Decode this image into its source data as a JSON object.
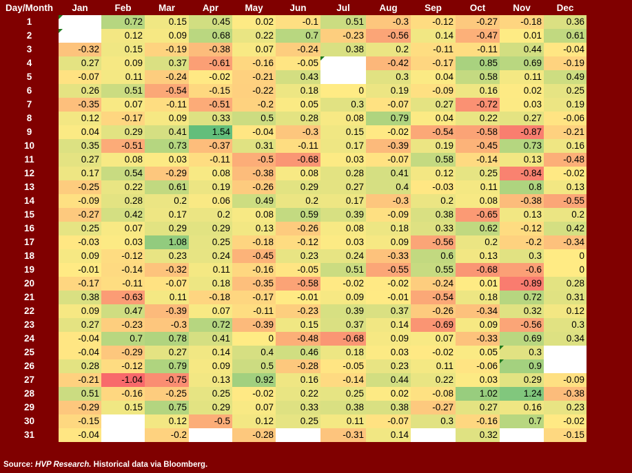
{
  "table": {
    "corner_label": "Day/Month",
    "months": [
      "Jan",
      "Feb",
      "Mar",
      "Apr",
      "May",
      "Jun",
      "Jul",
      "Aug",
      "Sep",
      "Oct",
      "Nov",
      "Dec"
    ],
    "days": [
      "1",
      "2",
      "3",
      "4",
      "5",
      "6",
      "7",
      "8",
      "9",
      "10",
      "11",
      "12",
      "13",
      "14",
      "15",
      "16",
      "17",
      "18",
      "19",
      "20",
      "21",
      "22",
      "23",
      "24",
      "25",
      "26",
      "27",
      "28",
      "29",
      "30",
      "31"
    ],
    "values": [
      [
        null,
        "0.72",
        "0.15",
        "0.45",
        "0.02",
        "-0.1",
        "0.51",
        "-0.3",
        "-0.12",
        "-0.27",
        "-0.18",
        "0.36"
      ],
      [
        null,
        "0.12",
        "0.09",
        "0.68",
        "0.22",
        "0.7",
        "-0.23",
        "-0.56",
        "0.14",
        "-0.47",
        "0.01",
        "0.61"
      ],
      [
        "-0.32",
        "0.15",
        "-0.19",
        "-0.38",
        "0.07",
        "-0.24",
        "0.38",
        "0.2",
        "-0.11",
        "-0.11",
        "0.44",
        "-0.04"
      ],
      [
        "0.27",
        "0.09",
        "0.37",
        "-0.61",
        "-0.16",
        "-0.05",
        null,
        "-0.42",
        "-0.17",
        "0.85",
        "0.69",
        "-0.19"
      ],
      [
        "-0.07",
        "0.11",
        "-0.24",
        "-0.02",
        "-0.21",
        "0.43",
        null,
        "0.3",
        "0.04",
        "0.58",
        "0.11",
        "0.49"
      ],
      [
        "0.26",
        "0.51",
        "-0.54",
        "-0.15",
        "-0.22",
        "0.18",
        "0",
        "0.19",
        "-0.09",
        "0.16",
        "0.02",
        "0.25"
      ],
      [
        "-0.35",
        "0.07",
        "-0.11",
        "-0.51",
        "-0.2",
        "0.05",
        "0.3",
        "-0.07",
        "0.27",
        "-0.72",
        "0.03",
        "0.19"
      ],
      [
        "0.12",
        "-0.17",
        "0.09",
        "0.33",
        "0.5",
        "0.28",
        "0.08",
        "0.79",
        "0.04",
        "0.22",
        "0.27",
        "-0.06"
      ],
      [
        "0.04",
        "0.29",
        "0.41",
        "1.54",
        "-0.04",
        "-0.3",
        "0.15",
        "-0.02",
        "-0.54",
        "-0.58",
        "-0.87",
        "-0.21"
      ],
      [
        "0.35",
        "-0.51",
        "0.73",
        "-0.37",
        "0.31",
        "-0.11",
        "0.17",
        "-0.39",
        "0.19",
        "-0.45",
        "0.73",
        "0.16"
      ],
      [
        "0.27",
        "0.08",
        "0.03",
        "-0.11",
        "-0.5",
        "-0.68",
        "0.03",
        "-0.07",
        "0.58",
        "-0.14",
        "0.13",
        "-0.48"
      ],
      [
        "0.17",
        "0.54",
        "-0.29",
        "0.08",
        "-0.38",
        "0.08",
        "0.28",
        "0.41",
        "0.12",
        "0.25",
        "-0.84",
        "-0.02"
      ],
      [
        "-0.25",
        "0.22",
        "0.61",
        "0.19",
        "-0.26",
        "0.29",
        "0.27",
        "0.4",
        "-0.03",
        "0.11",
        "0.8",
        "0.13"
      ],
      [
        "-0.09",
        "0.28",
        "0.2",
        "0.06",
        "0.49",
        "0.2",
        "0.17",
        "-0.3",
        "0.2",
        "0.08",
        "-0.38",
        "-0.55"
      ],
      [
        "-0.27",
        "0.42",
        "0.17",
        "0.2",
        "0.08",
        "0.59",
        "0.39",
        "-0.09",
        "0.38",
        "-0.65",
        "0.13",
        "0.2"
      ],
      [
        "0.25",
        "0.07",
        "0.29",
        "0.29",
        "0.13",
        "-0.26",
        "0.08",
        "0.18",
        "0.33",
        "0.62",
        "-0.12",
        "0.42"
      ],
      [
        "-0.03",
        "0.03",
        "1.08",
        "0.25",
        "-0.18",
        "-0.12",
        "0.03",
        "0.09",
        "-0.56",
        "0.2",
        "-0.2",
        "-0.34"
      ],
      [
        "0.09",
        "-0.12",
        "0.23",
        "0.24",
        "-0.45",
        "0.23",
        "0.24",
        "-0.33",
        "0.6",
        "0.13",
        "0.3",
        "0"
      ],
      [
        "-0.01",
        "-0.14",
        "-0.32",
        "0.11",
        "-0.16",
        "-0.05",
        "0.51",
        "-0.55",
        "0.55",
        "-0.68",
        "-0.6",
        "0"
      ],
      [
        "-0.17",
        "-0.11",
        "-0.07",
        "0.18",
        "-0.35",
        "-0.58",
        "-0.02",
        "-0.02",
        "-0.24",
        "0.01",
        "-0.89",
        "0.28"
      ],
      [
        "0.38",
        "-0.63",
        "0.11",
        "-0.18",
        "-0.17",
        "-0.01",
        "0.09",
        "-0.01",
        "-0.54",
        "0.18",
        "0.72",
        "0.31"
      ],
      [
        "0.09",
        "0.47",
        "-0.39",
        "0.07",
        "-0.11",
        "-0.23",
        "0.39",
        "0.37",
        "-0.26",
        "-0.34",
        "0.32",
        "0.12"
      ],
      [
        "0.27",
        "-0.23",
        "-0.3",
        "0.72",
        "-0.39",
        "0.15",
        "0.37",
        "0.14",
        "-0.69",
        "0.09",
        "-0.56",
        "0.3"
      ],
      [
        "-0.04",
        "0.7",
        "0.78",
        "0.41",
        "0",
        "-0.48",
        "-0.68",
        "0.09",
        "0.07",
        "-0.33",
        "0.69",
        "0.34"
      ],
      [
        "-0.04",
        "-0.29",
        "0.27",
        "0.14",
        "0.4",
        "0.46",
        "0.18",
        "0.03",
        "-0.02",
        "0.05",
        "0.3",
        null
      ],
      [
        "0.28",
        "-0.12",
        "0.79",
        "0.09",
        "0.5",
        "-0.28",
        "-0.05",
        "0.23",
        "0.11",
        "-0.06",
        "0.9",
        null
      ],
      [
        "-0.21",
        "-1.04",
        "-0.75",
        "0.13",
        "0.92",
        "0.16",
        "-0.14",
        "0.44",
        "0.22",
        "0.03",
        "0.29",
        "-0.09"
      ],
      [
        "0.51",
        "-0.16",
        "-0.25",
        "0.25",
        "-0.02",
        "0.22",
        "0.25",
        "0.02",
        "-0.08",
        "1.02",
        "1.24",
        "-0.38"
      ],
      [
        "-0.29",
        "0.15",
        "0.75",
        "0.29",
        "0.07",
        "0.33",
        "0.38",
        "0.38",
        "-0.27",
        "0.27",
        "0.16",
        "0.23"
      ],
      [
        "-0.15",
        null,
        "0.12",
        "-0.5",
        "0.12",
        "0.25",
        "0.11",
        "-0.07",
        "0.3",
        "-0.16",
        "0.7",
        "-0.02"
      ],
      [
        "-0.04",
        null,
        "-0.2",
        null,
        "-0.28",
        null,
        "-0.31",
        "0.14",
        null,
        "0.32",
        null,
        "-0.15"
      ]
    ],
    "flagged_cells": [
      [
        0,
        0
      ],
      [
        1,
        0
      ],
      [
        3,
        6
      ],
      [
        24,
        10
      ],
      [
        25,
        10
      ]
    ],
    "color_scale": {
      "min": -1.04,
      "mid": 0,
      "max": 1.54,
      "low": "#f8696b",
      "mid_color": "#ffeb84",
      "high": "#63be7b"
    },
    "header_background": "#800000",
    "header_text_color": "#ffffff"
  },
  "footer": {
    "source_label": "Source:",
    "source_name": "HVP Research.",
    "source_rest": "Historical data via Bloomberg."
  }
}
